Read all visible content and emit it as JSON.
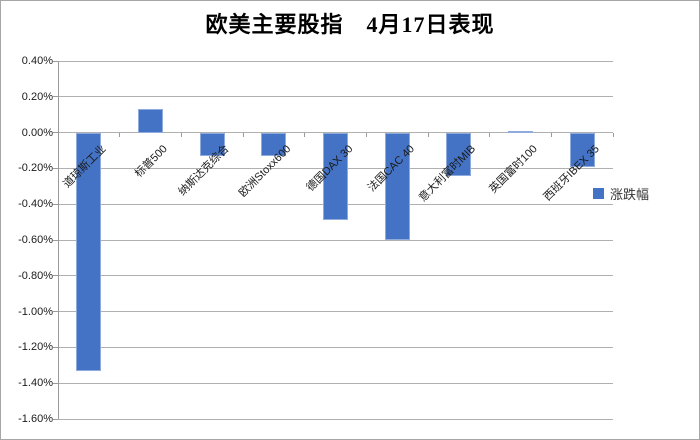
{
  "chart_data": {
    "type": "bar",
    "title": "欧美主要股指　4月17日表现",
    "categories": [
      "道琼斯工业",
      "标普500",
      "纳斯达克综合",
      "欧洲Stoxx600",
      "德国DAX 30",
      "法国CAC 40",
      "意大利富时MIB",
      "英国富时100",
      "西班牙IBEX 35"
    ],
    "series": [
      {
        "name": "涨跌幅",
        "color": "#4472c4",
        "values": [
          -1.33,
          0.13,
          -0.13,
          -0.13,
          -0.49,
          -0.6,
          -0.24,
          0.01,
          -0.19
        ]
      }
    ],
    "xlabel": "",
    "ylabel": "",
    "ylim": [
      -1.6,
      0.4
    ],
    "ytick_step": 0.2,
    "ytick_labels": [
      "0.40%",
      "0.20%",
      "0.00%",
      "-0.20%",
      "-0.40%",
      "-0.60%",
      "-0.80%",
      "-1.00%",
      "-1.20%",
      "-1.40%",
      "-1.60%"
    ],
    "grid": true,
    "legend_position": "right",
    "colors": {
      "bar": "#4472c4",
      "bar_border": "#8faadc",
      "gridline": "#b0b0b0",
      "axis": "#9a9a9a",
      "tick_text": "#1a1a1a",
      "title_text": "#000000"
    }
  }
}
